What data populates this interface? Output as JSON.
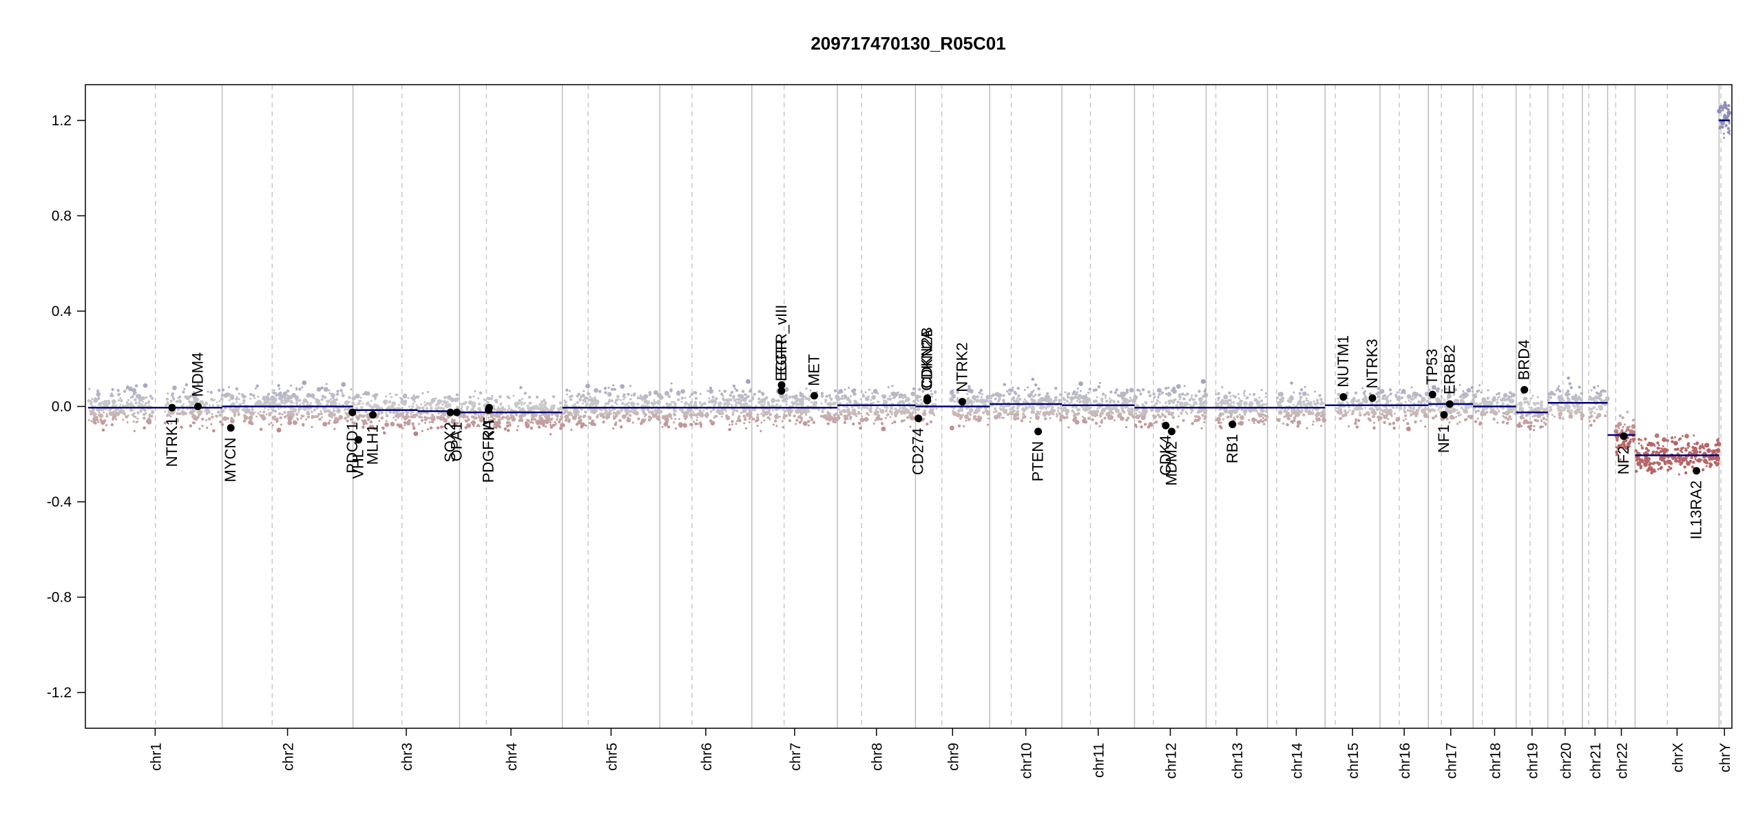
{
  "chart_data": {
    "type": "scatter",
    "title": "209717470130_R05C01",
    "xlabel": "",
    "ylabel": "",
    "ylim": [
      -1.35,
      1.35
    ],
    "y_ticks": [
      {
        "value": 1.2,
        "label": "1.2"
      },
      {
        "value": 0.8,
        "label": "0.8"
      },
      {
        "value": 0.4,
        "label": "0.4"
      },
      {
        "value": 0.0,
        "label": "0.0"
      },
      {
        "value": -0.4,
        "label": "-0.4"
      },
      {
        "value": -0.8,
        "label": "-0.8"
      },
      {
        "value": -1.2,
        "label": "-1.2"
      }
    ],
    "x_unit": "Mb",
    "chromosomes": [
      {
        "name": "chr1",
        "length": 249,
        "centromere": 125
      },
      {
        "name": "chr2",
        "length": 243,
        "centromere": 93
      },
      {
        "name": "chr3",
        "length": 198,
        "centromere": 91
      },
      {
        "name": "chr4",
        "length": 191,
        "centromere": 50
      },
      {
        "name": "chr5",
        "length": 181,
        "centromere": 48
      },
      {
        "name": "chr6",
        "length": 171,
        "centromere": 60
      },
      {
        "name": "chr7",
        "length": 159,
        "centromere": 60
      },
      {
        "name": "chr8",
        "length": 145,
        "centromere": 45
      },
      {
        "name": "chr9",
        "length": 138,
        "centromere": 49
      },
      {
        "name": "chr10",
        "length": 134,
        "centromere": 40
      },
      {
        "name": "chr11",
        "length": 135,
        "centromere": 53
      },
      {
        "name": "chr12",
        "length": 133,
        "centromere": 35
      },
      {
        "name": "chr13",
        "length": 114,
        "centromere": 18
      },
      {
        "name": "chr14",
        "length": 107,
        "centromere": 17
      },
      {
        "name": "chr15",
        "length": 102,
        "centromere": 19
      },
      {
        "name": "chr16",
        "length": 90,
        "centromere": 36
      },
      {
        "name": "chr17",
        "length": 83,
        "centromere": 24
      },
      {
        "name": "chr18",
        "length": 80,
        "centromere": 17
      },
      {
        "name": "chr19",
        "length": 59,
        "centromere": 26
      },
      {
        "name": "chr20",
        "length": 64,
        "centromere": 28
      },
      {
        "name": "chr21",
        "length": 47,
        "centromere": 12
      },
      {
        "name": "chr22",
        "length": 51,
        "centromere": 15
      },
      {
        "name": "chrX",
        "length": 156,
        "centromere": 60
      },
      {
        "name": "chrY",
        "length": 57,
        "centromere": 10
      }
    ],
    "segments": [
      {
        "chr": "chr1",
        "start": 0,
        "end": 249,
        "value": -0.005
      },
      {
        "chr": "chr2",
        "start": 0,
        "end": 243,
        "value": 0.0
      },
      {
        "chr": "chr3",
        "start": 0,
        "end": 120,
        "value": -0.015
      },
      {
        "chr": "chr3",
        "start": 120,
        "end": 198,
        "value": -0.02
      },
      {
        "chr": "chr4",
        "start": 0,
        "end": 191,
        "value": -0.025
      },
      {
        "chr": "chr5",
        "start": 0,
        "end": 181,
        "value": -0.005
      },
      {
        "chr": "chr6",
        "start": 0,
        "end": 171,
        "value": -0.005
      },
      {
        "chr": "chr7",
        "start": 0,
        "end": 159,
        "value": -0.005
      },
      {
        "chr": "chr8",
        "start": 0,
        "end": 145,
        "value": 0.005
      },
      {
        "chr": "chr9",
        "start": 0,
        "end": 138,
        "value": 0.0
      },
      {
        "chr": "chr10",
        "start": 0,
        "end": 134,
        "value": 0.01
      },
      {
        "chr": "chr11",
        "start": 0,
        "end": 135,
        "value": 0.005
      },
      {
        "chr": "chr12",
        "start": 0,
        "end": 133,
        "value": -0.005
      },
      {
        "chr": "chr13",
        "start": 0,
        "end": 114,
        "value": -0.005
      },
      {
        "chr": "chr14",
        "start": 0,
        "end": 107,
        "value": -0.005
      },
      {
        "chr": "chr15",
        "start": 0,
        "end": 102,
        "value": 0.005
      },
      {
        "chr": "chr16",
        "start": 0,
        "end": 90,
        "value": 0.005
      },
      {
        "chr": "chr17",
        "start": 0,
        "end": 83,
        "value": 0.01
      },
      {
        "chr": "chr18",
        "start": 0,
        "end": 80,
        "value": 0.0
      },
      {
        "chr": "chr19",
        "start": 0,
        "end": 59,
        "value": -0.025
      },
      {
        "chr": "chr20",
        "start": 0,
        "end": 64,
        "value": 0.015
      },
      {
        "chr": "chr21",
        "start": 0,
        "end": 47,
        "value": 0.015
      },
      {
        "chr": "chr22",
        "start": 0,
        "end": 51,
        "value": -0.12
      },
      {
        "chr": "chrX",
        "start": 0,
        "end": 156,
        "value": -0.205
      },
      {
        "chr": "chrY",
        "start": 0,
        "end": 57,
        "value": 1.2
      }
    ],
    "genes": [
      {
        "name": "NTRK1",
        "chr": "chr1",
        "pos": 156,
        "value": -0.005,
        "label_side": "below"
      },
      {
        "name": "MDM4",
        "chr": "chr1",
        "pos": 204,
        "value": 0.0,
        "label_side": "above"
      },
      {
        "name": "MYCN",
        "chr": "chr2",
        "pos": 16,
        "value": -0.09,
        "label_side": "below"
      },
      {
        "name": "PDCD1",
        "chr": "chr2",
        "pos": 242,
        "value": -0.025,
        "label_side": "below"
      },
      {
        "name": "VHL",
        "chr": "chr3",
        "pos": 10,
        "value": -0.14,
        "label_side": "below"
      },
      {
        "name": "MLH1",
        "chr": "chr3",
        "pos": 37,
        "value": -0.035,
        "label_side": "below"
      },
      {
        "name": "SOX2",
        "chr": "chr3",
        "pos": 181,
        "value": -0.025,
        "label_side": "below"
      },
      {
        "name": "OPA1",
        "chr": "chr3",
        "pos": 193,
        "value": -0.025,
        "label_side": "below"
      },
      {
        "name": "PDGFRA",
        "chr": "chr4",
        "pos": 54,
        "value": -0.015,
        "label_side": "below"
      },
      {
        "name": "KIT",
        "chr": "chr4",
        "pos": 55,
        "value": -0.005,
        "label_side": "below"
      },
      {
        "name": "EGFR",
        "chr": "chr7",
        "pos": 55,
        "value": 0.065,
        "label_side": "above"
      },
      {
        "name": "EGFR_vIII",
        "chr": "chr7",
        "pos": 55.3,
        "value": 0.09,
        "label_side": "above"
      },
      {
        "name": "MET",
        "chr": "chr7",
        "pos": 116,
        "value": 0.045,
        "label_side": "above"
      },
      {
        "name": "CD274",
        "chr": "chr9",
        "pos": 5.5,
        "value": -0.05,
        "label_side": "below"
      },
      {
        "name": "CDKN2A",
        "chr": "chr9",
        "pos": 21.9,
        "value": 0.025,
        "label_side": "above"
      },
      {
        "name": "CDKN2B",
        "chr": "chr9",
        "pos": 22.0,
        "value": 0.035,
        "label_side": "above"
      },
      {
        "name": "NTRK2",
        "chr": "chr9",
        "pos": 87,
        "value": 0.02,
        "label_side": "above"
      },
      {
        "name": "PTEN",
        "chr": "chr10",
        "pos": 90,
        "value": -0.105,
        "label_side": "below"
      },
      {
        "name": "CDK4",
        "chr": "chr12",
        "pos": 58,
        "value": -0.08,
        "label_side": "below"
      },
      {
        "name": "MDM2",
        "chr": "chr12",
        "pos": 69,
        "value": -0.105,
        "label_side": "below"
      },
      {
        "name": "RB1",
        "chr": "chr13",
        "pos": 49,
        "value": -0.075,
        "label_side": "below"
      },
      {
        "name": "NUTM1",
        "chr": "chr15",
        "pos": 34,
        "value": 0.04,
        "label_side": "above"
      },
      {
        "name": "NTRK3",
        "chr": "chr15",
        "pos": 88,
        "value": 0.035,
        "label_side": "above"
      },
      {
        "name": "TP53",
        "chr": "chr17",
        "pos": 7.6,
        "value": 0.05,
        "label_side": "above"
      },
      {
        "name": "NF1",
        "chr": "chr17",
        "pos": 29,
        "value": -0.035,
        "label_side": "below"
      },
      {
        "name": "ERBB2",
        "chr": "chr17",
        "pos": 39.7,
        "value": 0.01,
        "label_side": "above"
      },
      {
        "name": "BRD4",
        "chr": "chr19",
        "pos": 15.3,
        "value": 0.07,
        "label_side": "above"
      },
      {
        "name": "NF2",
        "chr": "chr22",
        "pos": 30,
        "value": -0.125,
        "label_side": "below"
      },
      {
        "name": "IL13RA2",
        "chr": "chrX",
        "pos": 114,
        "value": -0.27,
        "label_side": "below"
      }
    ],
    "colors": {
      "gain": "#8f8fbd",
      "loss": "#b86464",
      "neutral": "#cccccc",
      "segment": "#00007a",
      "gene_dot": "#000000"
    },
    "grid": false
  }
}
